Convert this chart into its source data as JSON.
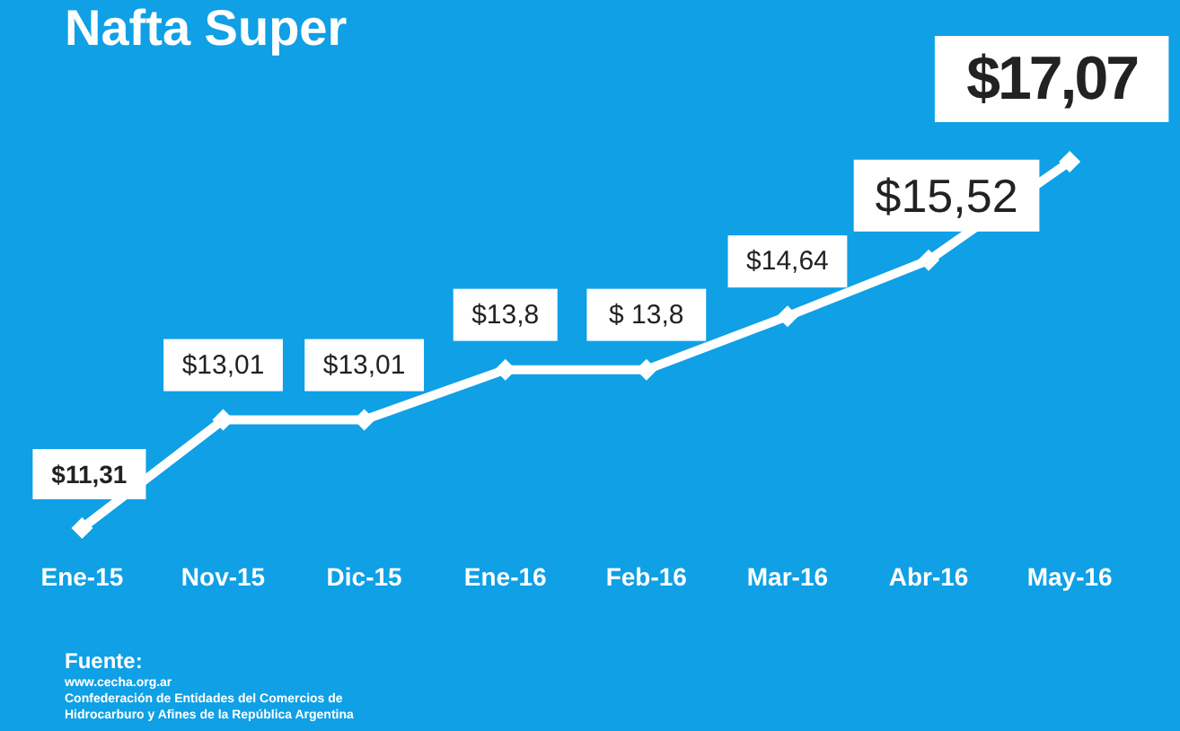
{
  "chart_data": {
    "type": "line",
    "title": "Nafta Super",
    "categories": [
      "Ene-15",
      "Nov-15",
      "Dic-15",
      "Ene-16",
      "Feb-16",
      "Mar-16",
      "Abr-16",
      "May-16"
    ],
    "values": [
      11.31,
      13.01,
      13.01,
      13.8,
      13.8,
      14.64,
      15.52,
      17.07
    ],
    "value_labels": [
      "$11,31",
      "$13,01",
      "$13,01",
      "$13,8",
      "$ 13,8",
      "$14,64",
      "$15,52",
      "$17,07"
    ],
    "color": "#ffffff",
    "marker": "diamond",
    "grid": false,
    "legend": false,
    "annotations": [
      "Fuente:",
      "www.cecha.org.ar",
      "Confederación de Entidades del Comercios de",
      "Hidrocarburo y Afines de la República Argentina"
    ]
  }
}
